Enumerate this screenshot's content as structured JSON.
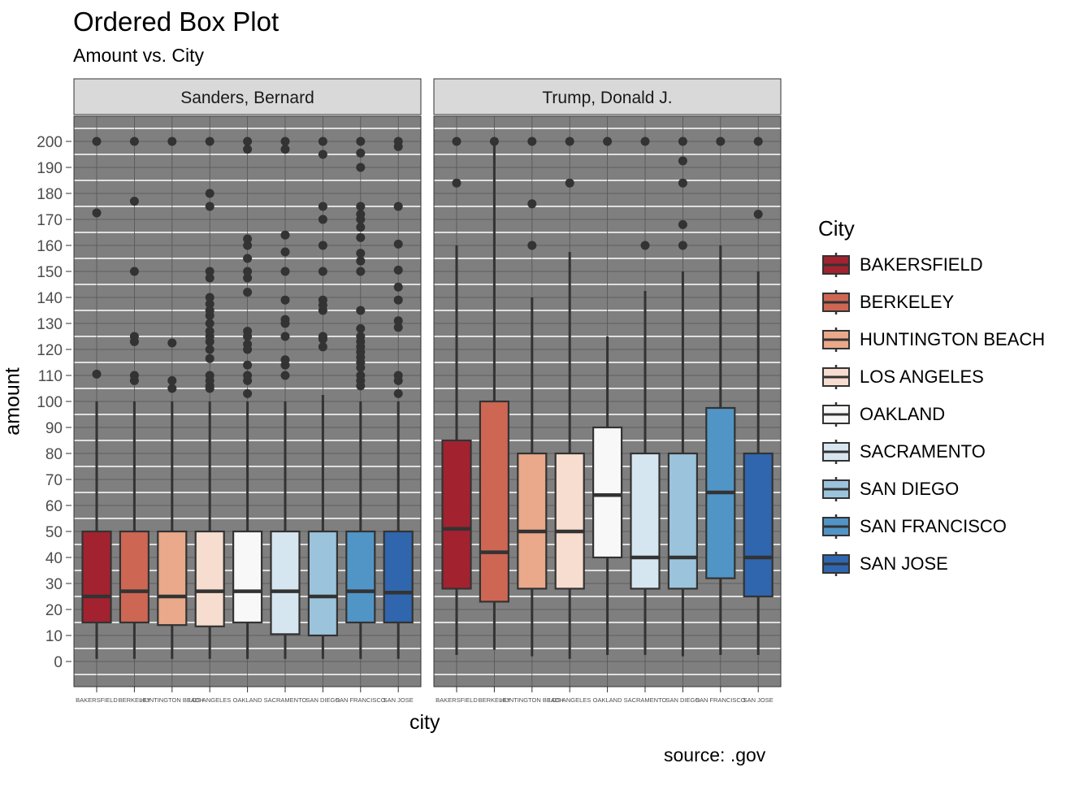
{
  "chart_data": {
    "type": "box",
    "title": "Ordered Box Plot",
    "subtitle": "Amount vs. City",
    "caption": "source: .gov",
    "xlabel": "city",
    "ylabel": "amount",
    "ylim": [
      -8,
      210
    ],
    "yticks": [
      0,
      10,
      20,
      30,
      40,
      50,
      60,
      70,
      80,
      90,
      100,
      110,
      120,
      130,
      140,
      150,
      160,
      170,
      180,
      190,
      200
    ],
    "grid": true,
    "legend": {
      "title": "City",
      "position": "right"
    },
    "categories": [
      "BAKERSFIELD",
      "BERKELEY",
      "HUNTINGTON BEACH",
      "LOS ANGELES",
      "OAKLAND",
      "SACRAMENTO",
      "SAN DIEGO",
      "SAN FRANCISCO",
      "SAN JOSE"
    ],
    "colors": [
      "#A3222F",
      "#CE6654",
      "#E9A98A",
      "#F7DDCF",
      "#F8F8F8",
      "#D6E6F1",
      "#9CC3DC",
      "#5195C6",
      "#2F66AE"
    ],
    "panels": [
      {
        "name": "Sanders, Bernard",
        "boxes": [
          {
            "min": 1,
            "q1": 15,
            "median": 25,
            "q3": 50,
            "max": 100,
            "outliers": [
              110.5,
              172.5,
              200
            ]
          },
          {
            "min": 1,
            "q1": 15,
            "median": 27,
            "q3": 50,
            "max": 100,
            "outliers": [
              108,
              110,
              123,
              125,
              150,
              177,
              200
            ]
          },
          {
            "min": 1,
            "q1": 14,
            "median": 25,
            "q3": 50,
            "max": 100,
            "outliers": [
              105,
              108,
              122.5,
              200
            ]
          },
          {
            "min": 1,
            "q1": 13.5,
            "median": 27,
            "q3": 50,
            "max": 100,
            "outliers": [
              105,
              106,
              108,
              110,
              116.5,
              120,
              123,
              125,
              127,
              130,
              133,
              135,
              137.5,
              140,
              147.5,
              150,
              175,
              180,
              200
            ]
          },
          {
            "min": 1,
            "q1": 15,
            "median": 27,
            "q3": 50,
            "max": 100,
            "outliers": [
              103,
              108,
              110,
              114,
              120,
              122,
              125,
              127,
              142,
              147.5,
              150,
              155,
              160,
              162.5,
              197,
              200
            ]
          },
          {
            "min": 1,
            "q1": 10.5,
            "median": 27,
            "q3": 50,
            "max": 100,
            "outliers": [
              110,
              114,
              116,
              125,
              130,
              131.5,
              139,
              150,
              157.5,
              164,
              197,
              200
            ]
          },
          {
            "min": 1,
            "q1": 10,
            "median": 25,
            "q3": 50,
            "max": 102.5,
            "outliers": [
              121,
              124,
              125,
              135,
              137,
              139,
              150,
              160,
              170,
              175,
              195,
              200
            ]
          },
          {
            "min": 1,
            "q1": 15,
            "median": 27,
            "q3": 50,
            "max": 100,
            "outliers": [
              106,
              108,
              110,
              113,
              115,
              117,
              119,
              121,
              123,
              125,
              128,
              135,
              150,
              154,
              157,
              163,
              167,
              170,
              172,
              175,
              190,
              195.5,
              200
            ]
          },
          {
            "min": 1,
            "q1": 15,
            "median": 26.5,
            "q3": 50,
            "max": 100,
            "outliers": [
              103,
              108,
              110,
              128.5,
              131,
              139,
              144,
              150.5,
              160.5,
              175,
              198,
              200
            ]
          }
        ]
      },
      {
        "name": "Trump, Donald J.",
        "boxes": [
          {
            "min": 2.5,
            "q1": 28,
            "median": 51,
            "q3": 85,
            "max": 160,
            "outliers": [
              184,
              200
            ]
          },
          {
            "min": 4.5,
            "q1": 23,
            "median": 42,
            "q3": 100,
            "max": 200,
            "outliers": [
              200
            ]
          },
          {
            "min": 2,
            "q1": 28,
            "median": 50,
            "q3": 80,
            "max": 140,
            "outliers": [
              160,
              176,
              200
            ]
          },
          {
            "min": 1,
            "q1": 28,
            "median": 50,
            "q3": 80,
            "max": 157.5,
            "outliers": [
              184,
              200
            ]
          },
          {
            "min": 2.5,
            "q1": 40,
            "median": 64,
            "q3": 90,
            "max": 125,
            "outliers": [
              200
            ]
          },
          {
            "min": 2.5,
            "q1": 28,
            "median": 40,
            "q3": 80,
            "max": 142.5,
            "outliers": [
              160,
              200
            ]
          },
          {
            "min": 2,
            "q1": 28,
            "median": 40,
            "q3": 80,
            "max": 150,
            "outliers": [
              160,
              168,
              184,
              192.5,
              200
            ]
          },
          {
            "min": 2.5,
            "q1": 32,
            "median": 65,
            "q3": 97.5,
            "max": 160,
            "outliers": [
              200
            ]
          },
          {
            "min": 2.5,
            "q1": 25,
            "median": 40,
            "q3": 80,
            "max": 150,
            "outliers": [
              172,
              200
            ]
          }
        ]
      }
    ]
  }
}
